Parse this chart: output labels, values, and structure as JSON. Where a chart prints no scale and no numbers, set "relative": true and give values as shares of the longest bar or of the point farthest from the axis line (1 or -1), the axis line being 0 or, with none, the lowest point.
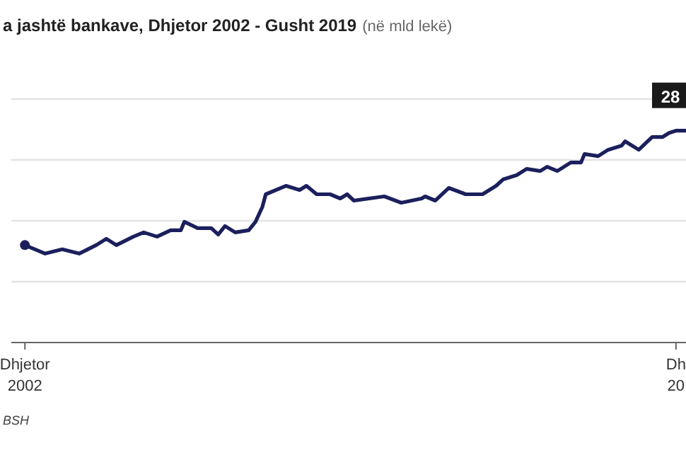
{
  "chart_data": {
    "type": "line",
    "relative": true,
    "title": "a jashtë bankave, Dhjetor 2002 - Gusht 2019",
    "subtitle": "(në mld lekë)",
    "annotations": [
      {
        "text": "28",
        "x": "2019-03",
        "y": 1.0
      },
      "BSH"
    ],
    "x": [
      "2002-12",
      "2003-06",
      "2003-11",
      "2004-04",
      "2004-09",
      "2004-12",
      "2005-03",
      "2005-08",
      "2005-11",
      "2006-03",
      "2006-07",
      "2006-10",
      "2006-11",
      "2007-03",
      "2007-07",
      "2007-09",
      "2007-11",
      "2008-02",
      "2008-06",
      "2008-08",
      "2008-10",
      "2008-11",
      "2009-05",
      "2009-09",
      "2009-11",
      "2010-02",
      "2010-06",
      "2010-09",
      "2010-11",
      "2011-01",
      "2011-10",
      "2012-03",
      "2012-09",
      "2012-10",
      "2013-01",
      "2013-05",
      "2013-10",
      "2014-03",
      "2014-07",
      "2014-09",
      "2015-01",
      "2015-04",
      "2015-08",
      "2015-10",
      "2016-01",
      "2016-05",
      "2016-08",
      "2016-09",
      "2017-01",
      "2017-04",
      "2017-08",
      "2017-09",
      "2018-01",
      "2018-05",
      "2018-08",
      "2018-10",
      "2018-12",
      "2019-03"
    ],
    "series": [
      {
        "color": "#1b1f5c",
        "values": [
          0.46,
          0.42,
          0.44,
          0.42,
          0.46,
          0.49,
          0.46,
          0.5,
          0.52,
          0.5,
          0.53,
          0.53,
          0.57,
          0.54,
          0.54,
          0.51,
          0.55,
          0.52,
          0.53,
          0.57,
          0.64,
          0.7,
          0.74,
          0.72,
          0.74,
          0.7,
          0.7,
          0.68,
          0.7,
          0.67,
          0.69,
          0.66,
          0.68,
          0.69,
          0.67,
          0.73,
          0.7,
          0.7,
          0.74,
          0.77,
          0.79,
          0.82,
          0.81,
          0.83,
          0.81,
          0.85,
          0.85,
          0.89,
          0.88,
          0.91,
          0.93,
          0.95,
          0.91,
          0.97,
          0.97,
          0.99,
          1.0,
          1.0
        ]
      }
    ],
    "xlim": [
      "2002-08",
      "2019-03"
    ],
    "xticks": [
      {
        "value": "2002-12",
        "label": "Dhjetor\n2002"
      },
      {
        "value": "2018-12",
        "label": "Dh\n20"
      }
    ],
    "grid": "y",
    "marker": "none",
    "line_style": "solid"
  }
}
